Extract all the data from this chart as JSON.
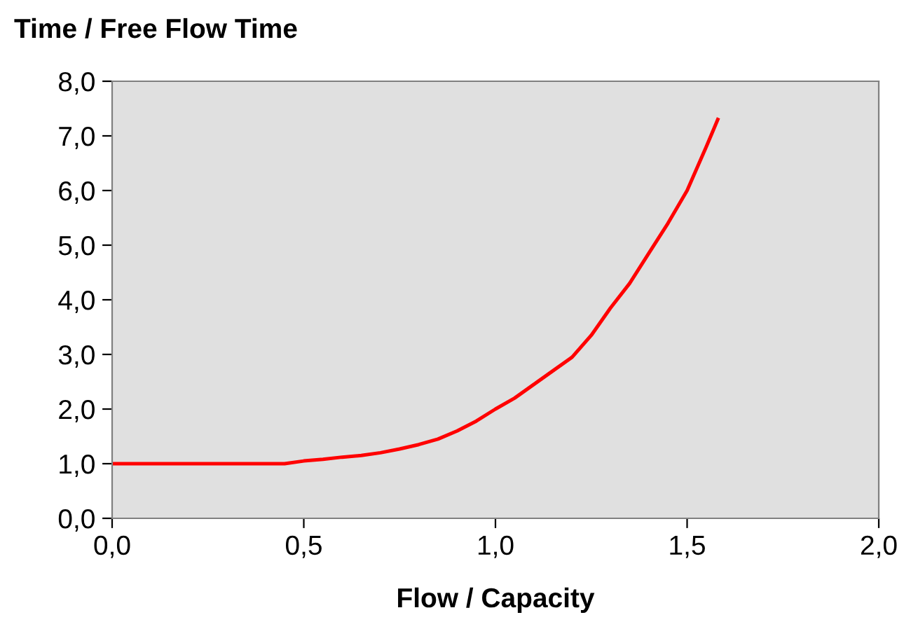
{
  "chart_data": {
    "type": "line",
    "title": "Time / Free Flow Time",
    "xlabel": "Flow / Capacity",
    "x": [
      0,
      0.1,
      0.2,
      0.3,
      0.4,
      0.45,
      0.5,
      0.55,
      0.6,
      0.65,
      0.7,
      0.75,
      0.8,
      0.85,
      0.9,
      0.95,
      1.0,
      1.05,
      1.1,
      1.15,
      1.2,
      1.25,
      1.3,
      1.35,
      1.4,
      1.45,
      1.5,
      1.55,
      1.58
    ],
    "series": [
      {
        "color": "#ff0000",
        "values": [
          1.0,
          1.0,
          1.0,
          1.0,
          1.0,
          1.0,
          1.05,
          1.08,
          1.12,
          1.15,
          1.2,
          1.27,
          1.35,
          1.45,
          1.6,
          1.78,
          2.0,
          2.2,
          2.45,
          2.7,
          2.95,
          3.35,
          3.85,
          4.3,
          4.85,
          5.4,
          6.0,
          6.8,
          7.3
        ]
      }
    ],
    "xlim": [
      0,
      2
    ],
    "ylim": [
      0,
      8
    ],
    "xticks": [
      {
        "value": 0,
        "label": "0,0"
      },
      {
        "value": 0.5,
        "label": "0,5"
      },
      {
        "value": 1,
        "label": "1,0"
      },
      {
        "value": 1.5,
        "label": "1,5"
      },
      {
        "value": 2,
        "label": "2,0"
      }
    ],
    "yticks": [
      {
        "value": 0,
        "label": "0,0"
      },
      {
        "value": 1,
        "label": "1,0"
      },
      {
        "value": 2,
        "label": "2,0"
      },
      {
        "value": 3,
        "label": "3,0"
      },
      {
        "value": 4,
        "label": "4,0"
      },
      {
        "value": 5,
        "label": "5,0"
      },
      {
        "value": 6,
        "label": "6,0"
      },
      {
        "value": 7,
        "label": "7,0"
      },
      {
        "value": 8,
        "label": "8,0"
      }
    ],
    "grid": false,
    "legend": false,
    "marker": "none",
    "line_style": "solid"
  }
}
